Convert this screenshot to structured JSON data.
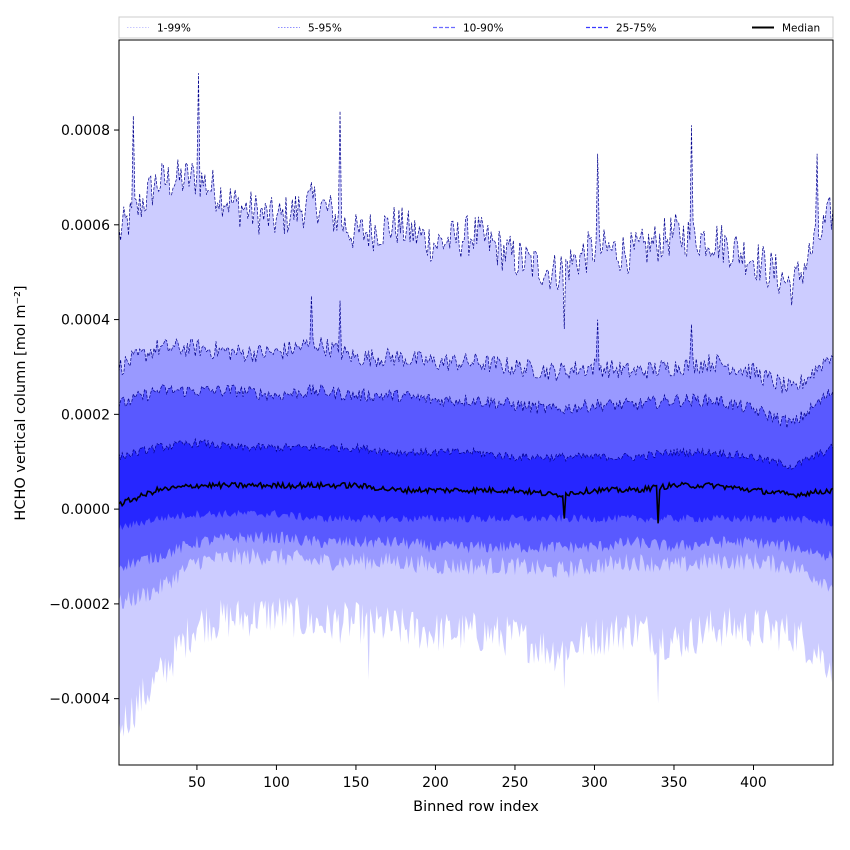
{
  "chart_data": {
    "type": "area",
    "title": "",
    "xlabel": "Binned row index",
    "ylabel": "HCHO vertical column [mol m⁻²]",
    "xlim": [
      1,
      450
    ],
    "ylim": [
      -0.00054,
      0.00099
    ],
    "xticks": [
      50,
      100,
      150,
      200,
      250,
      300,
      350,
      400
    ],
    "yticks": [
      -0.0004,
      -0.0002,
      0.0,
      0.0002,
      0.0004,
      0.0006,
      0.0008
    ],
    "ytick_labels": [
      "−0.0004",
      "−0.0002",
      "0.0000",
      "0.0002",
      "0.0004",
      "0.0006",
      "0.0008"
    ],
    "grid": false,
    "legend_position": "top",
    "colors": {
      "band_1_99": "#ccccff",
      "band_5_95": "#9999ff",
      "band_10_90": "#5959ff",
      "band_25_75": "#2626ff",
      "edge": "#00008b",
      "median": "#000000"
    },
    "legend": [
      {
        "label": "1-99%",
        "style": "dotted",
        "color": "#c8c8ff"
      },
      {
        "label": "5-95%",
        "style": "dotted",
        "color": "#8f8fff"
      },
      {
        "label": "10-90%",
        "style": "dashed",
        "color": "#6b6bff"
      },
      {
        "label": "25-75%",
        "style": "dashed",
        "color": "#3a3aff"
      },
      {
        "label": "Median",
        "style": "solid",
        "color": "#000000"
      }
    ],
    "x": [
      1,
      25,
      50,
      75,
      100,
      125,
      150,
      175,
      200,
      225,
      250,
      275,
      300,
      325,
      350,
      375,
      400,
      425,
      450
    ],
    "series": [
      {
        "name": "1-99%",
        "upper": [
          0.00058,
          0.00069,
          0.0007,
          0.00064,
          0.00061,
          0.00065,
          0.00058,
          0.0006,
          0.00056,
          0.00058,
          0.00053,
          0.0005,
          0.00055,
          0.00054,
          0.00058,
          0.00057,
          0.00053,
          0.00047,
          0.00063
        ],
        "lower": [
          -0.00046,
          -0.00036,
          -0.00024,
          -0.00023,
          -0.00022,
          -0.00024,
          -0.00024,
          -0.00025,
          -0.00026,
          -0.00026,
          -0.00027,
          -0.0003,
          -0.00027,
          -0.00025,
          -0.00028,
          -0.00025,
          -0.00025,
          -0.00026,
          -0.00033
        ]
      },
      {
        "name": "5-95%",
        "upper": [
          0.0003,
          0.00034,
          0.00034,
          0.00033,
          0.00033,
          0.00035,
          0.00032,
          0.00032,
          0.00031,
          0.00031,
          0.0003,
          0.00029,
          0.0003,
          0.00029,
          0.0003,
          0.00031,
          0.00029,
          0.00025,
          0.00033
        ],
        "lower": [
          -0.0002,
          -0.00017,
          -0.00011,
          -0.0001,
          -0.0001,
          -0.00011,
          -0.00011,
          -0.00011,
          -0.00012,
          -0.00012,
          -0.00012,
          -0.00013,
          -0.00012,
          -0.00011,
          -0.00012,
          -0.00011,
          -0.00011,
          -0.00012,
          -0.00016
        ]
      },
      {
        "name": "10-90%",
        "upper": [
          0.00022,
          0.00025,
          0.00025,
          0.00025,
          0.00024,
          0.00025,
          0.00024,
          0.00024,
          0.00023,
          0.00023,
          0.00022,
          0.00021,
          0.00022,
          0.00022,
          0.00023,
          0.00023,
          0.00021,
          0.00018,
          0.00025
        ],
        "lower": [
          -0.00012,
          -0.0001,
          -7e-05,
          -6e-05,
          -6e-05,
          -7e-05,
          -7e-05,
          -7e-05,
          -8e-05,
          -8e-05,
          -8e-05,
          -8e-05,
          -8e-05,
          -7e-05,
          -8e-05,
          -7e-05,
          -7e-05,
          -8e-05,
          -0.0001
        ]
      },
      {
        "name": "25-75%",
        "upper": [
          0.00011,
          0.00013,
          0.00014,
          0.00013,
          0.00013,
          0.00013,
          0.00013,
          0.00012,
          0.00012,
          0.00012,
          0.00011,
          0.00011,
          0.00011,
          0.00011,
          0.00012,
          0.00012,
          0.00011,
          9e-05,
          0.00013
        ],
        "lower": [
          -4e-05,
          -2e-05,
          -1e-05,
          -1e-05,
          -1e-05,
          -2e-05,
          -2e-05,
          -2e-05,
          -2e-05,
          -2e-05,
          -2e-05,
          -2e-05,
          -2e-05,
          -2e-05,
          -2e-05,
          -2e-05,
          -2e-05,
          -2e-05,
          -3e-05
        ]
      },
      {
        "name": "Median",
        "values": [
          1e-05,
          4e-05,
          5e-05,
          5e-05,
          5e-05,
          5e-05,
          5e-05,
          4e-05,
          4e-05,
          4e-05,
          4e-05,
          3e-05,
          4e-05,
          4e-05,
          5e-05,
          5e-05,
          4e-05,
          3e-05,
          4e-05
        ]
      }
    ],
    "spikes": [
      {
        "x": 10,
        "band": "1-99%",
        "side": "upper",
        "value": 0.00083
      },
      {
        "x": 51,
        "band": "1-99%",
        "side": "upper",
        "value": 0.00092
      },
      {
        "x": 140,
        "band": "1-99%",
        "side": "upper",
        "value": 0.00084
      },
      {
        "x": 302,
        "band": "1-99%",
        "side": "upper",
        "value": 0.00075
      },
      {
        "x": 361,
        "band": "1-99%",
        "side": "upper",
        "value": 0.00081
      },
      {
        "x": 281,
        "band": "1-99%",
        "side": "upper",
        "value": 0.00038
      },
      {
        "x": 440,
        "band": "1-99%",
        "side": "upper",
        "value": 0.00075
      },
      {
        "x": 122,
        "band": "5-95%",
        "side": "upper",
        "value": 0.00045
      },
      {
        "x": 140,
        "band": "5-95%",
        "side": "upper",
        "value": 0.00044
      },
      {
        "x": 302,
        "band": "5-95%",
        "side": "upper",
        "value": 0.0004
      },
      {
        "x": 361,
        "band": "5-95%",
        "side": "upper",
        "value": 0.00039
      },
      {
        "x": 340,
        "band": "1-99%",
        "side": "lower",
        "value": -0.00041
      },
      {
        "x": 281,
        "band": "1-99%",
        "side": "lower",
        "value": -0.00038
      },
      {
        "x": 158,
        "band": "1-99%",
        "side": "lower",
        "value": -0.00036
      },
      {
        "x": 340,
        "band": "Median",
        "side": "center",
        "value": -3e-05
      },
      {
        "x": 281,
        "band": "Median",
        "side": "center",
        "value": -2e-05
      }
    ]
  }
}
